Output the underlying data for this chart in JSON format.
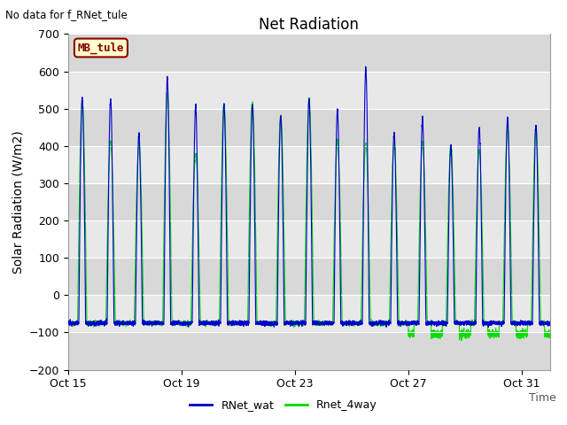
{
  "title": "Net Radiation",
  "topleft_text": "No data for f_RNet_tule",
  "xlabel": "Time",
  "ylabel": "Solar Radiation (W/m2)",
  "ylim": [
    -200,
    700
  ],
  "xtick_labels": [
    "Oct 15",
    "Oct 19",
    "Oct 23",
    "Oct 27",
    "Oct 31"
  ],
  "xtick_positions": [
    0,
    4,
    8,
    12,
    16
  ],
  "legend_items": [
    "RNet_wat",
    "Rnet_4way"
  ],
  "legend_colors": [
    "#0000cc",
    "#00dd00"
  ],
  "box_label": "MB_tule",
  "box_facecolor": "#ffffcc",
  "box_edgecolor": "#8b0000",
  "plot_bg_color": "#e8e8e8",
  "title_fontsize": 12,
  "label_fontsize": 10,
  "tick_fontsize": 9,
  "day_peaks_wat": [
    530,
    525,
    430,
    580,
    505,
    510,
    510,
    480,
    525,
    495,
    610,
    435,
    470,
    400,
    450,
    475,
    455
  ],
  "day_peaks_4way": [
    520,
    410,
    410,
    540,
    380,
    510,
    515,
    480,
    525,
    410,
    405,
    410,
    410,
    400,
    390,
    450,
    450
  ],
  "night_base": -75,
  "samples_per_day": 288
}
